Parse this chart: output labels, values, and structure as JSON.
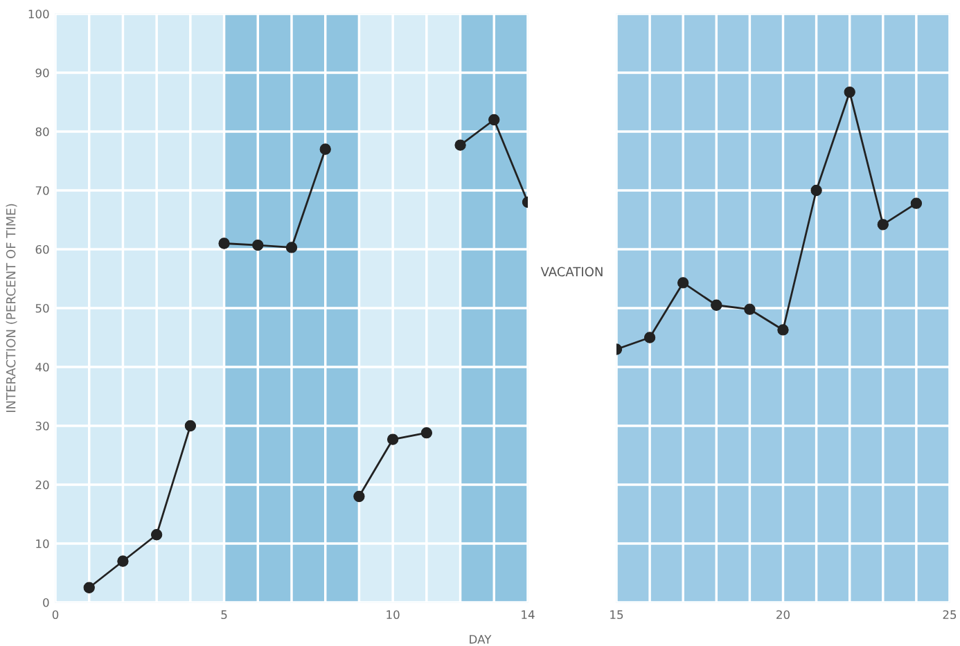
{
  "chart_data": [
    {
      "type": "line",
      "ylabel": "INTERACTION (PERCENT OF TIME)",
      "xlabel": "DAY",
      "xlim": [
        0,
        14
      ],
      "ylim": [
        0,
        100
      ],
      "xticks": [
        0,
        {
          "value": 1,
          "label": null
        },
        {
          "value": 2,
          "label": null
        },
        {
          "value": 3,
          "label": null
        },
        {
          "value": 4,
          "label": null
        },
        5,
        {
          "value": 6,
          "label": null
        },
        {
          "value": 7,
          "label": null
        },
        {
          "value": 8,
          "label": null
        },
        {
          "value": 9,
          "label": null
        },
        10,
        {
          "value": 11,
          "label": null
        },
        {
          "value": 12,
          "label": null
        },
        {
          "value": 13,
          "label": null
        },
        14
      ],
      "yticks": [
        0,
        10,
        20,
        30,
        40,
        50,
        60,
        70,
        80,
        90,
        100
      ],
      "grid": true,
      "marker": "circle",
      "line_style": "solid",
      "bands": [
        {
          "axis": "x",
          "from": 0,
          "to": 5,
          "color": "#d4ebf6"
        },
        {
          "axis": "x",
          "from": 5,
          "to": 9,
          "color": "#8fc4e0"
        },
        {
          "axis": "x",
          "from": 9,
          "to": 12,
          "color": "#d8edf7"
        },
        {
          "axis": "x",
          "from": 12,
          "to": 14,
          "color": "#8fc4e0"
        }
      ],
      "annotations": [
        "VACATION"
      ],
      "series": [
        {
          "color": "#222222",
          "x": [
            1,
            2,
            3,
            4
          ],
          "values": [
            2.5,
            7,
            11.5,
            30
          ]
        },
        {
          "color": "#222222",
          "x": [
            5,
            6,
            7,
            8
          ],
          "values": [
            61,
            60.7,
            60.3,
            77
          ]
        },
        {
          "color": "#222222",
          "x": [
            9,
            10,
            11
          ],
          "values": [
            18,
            27.7,
            28.8
          ]
        },
        {
          "color": "#222222",
          "x": [
            12,
            13,
            14
          ],
          "values": [
            77.7,
            82,
            68
          ]
        }
      ]
    },
    {
      "type": "line",
      "xlim": [
        15,
        25
      ],
      "ylim": [
        0,
        100
      ],
      "tick_labels": "x",
      "xticks": [
        15,
        {
          "value": 16,
          "label": null
        },
        {
          "value": 17,
          "label": null
        },
        {
          "value": 18,
          "label": null
        },
        {
          "value": 19,
          "label": null
        },
        20,
        {
          "value": 21,
          "label": null
        },
        {
          "value": 22,
          "label": null
        },
        {
          "value": 23,
          "label": null
        },
        {
          "value": 24,
          "label": null
        },
        25
      ],
      "yticks": [
        0,
        10,
        20,
        30,
        40,
        50,
        60,
        70,
        80,
        90,
        100
      ],
      "grid": true,
      "marker": "circle",
      "line_style": "solid",
      "bands": [
        {
          "axis": "x",
          "from": 15,
          "to": 25,
          "color": "#9ccae5"
        }
      ],
      "series": [
        {
          "color": "#222222",
          "x": [
            15,
            16,
            17,
            18,
            19,
            20,
            21,
            22,
            23,
            24
          ],
          "values": [
            43,
            45,
            54.3,
            50.5,
            49.8,
            46.3,
            70,
            86.7,
            64.2,
            67.8
          ]
        }
      ]
    }
  ]
}
